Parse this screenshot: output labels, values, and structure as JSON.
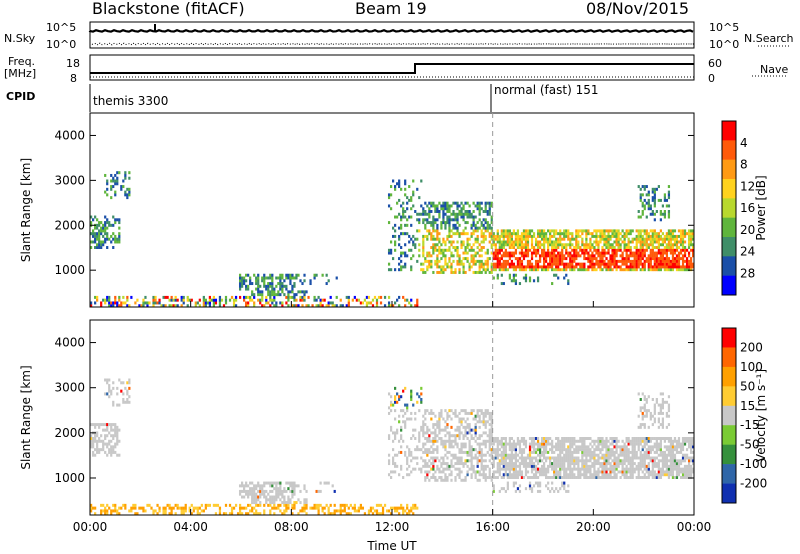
{
  "header": {
    "station": "Blackstone (fitACF)",
    "beam": "Beam 19",
    "date": "08/Nov/2015"
  },
  "noise_panel": {
    "left_label": "N.Sky",
    "right_label": "N.Search",
    "left_ticks": [
      "10^5",
      "10^0"
    ],
    "right_ticks": [
      "10^5",
      "10^0"
    ]
  },
  "freq_panel": {
    "left_label_line1": "Freq.",
    "left_label_line2": "[MHz]",
    "left_ticks": [
      "18",
      "8"
    ],
    "right_label": "Nave",
    "right_ticks": [
      "60",
      "0"
    ]
  },
  "cpid_panel": {
    "label": "CPID",
    "mode1": "themis 3300",
    "mode2": "normal (fast) 151"
  },
  "chart_data": [
    {
      "type": "heatmap",
      "name": "power",
      "ylabel": "Slant Range [km]",
      "ylim": [
        180,
        4500
      ],
      "yticks": [
        "1000",
        "2000",
        "3000",
        "4000"
      ],
      "xticks": [
        "00:00",
        "04:00",
        "08:00",
        "12:00",
        "16:00",
        "20:00",
        "00:00"
      ],
      "colorbar_label": "Power [dB]",
      "colorbar_ticks": [
        "4",
        "8",
        "12",
        "16",
        "20",
        "24",
        "28"
      ],
      "colors": [
        "#0000ff",
        "#1a4fa8",
        "#3f8e68",
        "#5fb53c",
        "#b8d82e",
        "#ffd21e",
        "#ff9a14",
        "#ff5a0a",
        "#ff0000"
      ]
    },
    {
      "type": "heatmap",
      "name": "velocity",
      "ylabel": "Slant Range [km]",
      "ylim": [
        180,
        4500
      ],
      "yticks": [
        "1000",
        "2000",
        "3000",
        "4000"
      ],
      "xticks": [
        "00:00",
        "04:00",
        "08:00",
        "12:00",
        "16:00",
        "20:00",
        "00:00"
      ],
      "xlabel": "Time UT",
      "colorbar_label": "Velocity [m s⁻¹]",
      "colorbar_ticks": [
        "200",
        "100",
        "50",
        "15",
        "-15",
        "-50",
        "-100",
        "-200"
      ],
      "colors": [
        "#1030b0",
        "#2f66a8",
        "#35903c",
        "#7acb34",
        "#c8c8c8",
        "#ffcc33",
        "#ffa000",
        "#ff6600",
        "#ff0000"
      ]
    }
  ]
}
